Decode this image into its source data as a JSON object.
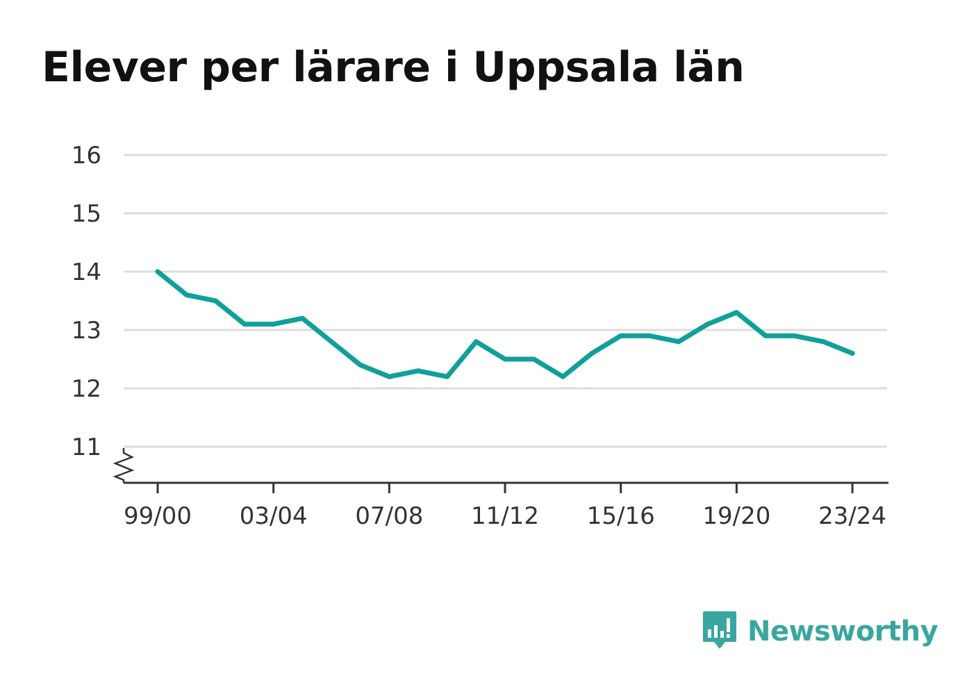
{
  "title": "Elever per lärare i Uppsala län",
  "brand": {
    "name": "Newsworthy",
    "icon": "newsworthy-logo-icon",
    "color": "#3aa6a0"
  },
  "colors": {
    "line": "#10a09a",
    "grid": "#dddddd",
    "axis": "#333333",
    "tick_text": "#333333"
  },
  "chart_data": {
    "type": "line",
    "title": "Elever per lärare i Uppsala län",
    "xlabel": "",
    "ylabel": "",
    "ylim": [
      10.4,
      16
    ],
    "yticks": [
      16,
      15,
      14,
      13,
      12,
      11
    ],
    "axis_break": true,
    "grid": true,
    "x": [
      "99/00",
      "00/01",
      "01/02",
      "02/03",
      "03/04",
      "04/05",
      "05/06",
      "06/07",
      "07/08",
      "08/09",
      "09/10",
      "10/11",
      "11/12",
      "12/13",
      "13/14",
      "14/15",
      "15/16",
      "16/17",
      "17/18",
      "18/19",
      "19/20",
      "20/21",
      "21/22",
      "22/23",
      "23/24"
    ],
    "xtick_labels": [
      "99/00",
      "03/04",
      "07/08",
      "11/12",
      "15/16",
      "19/20",
      "23/24"
    ],
    "series": [
      {
        "values": [
          14.0,
          13.6,
          13.5,
          13.1,
          13.1,
          13.2,
          12.8,
          12.4,
          12.2,
          12.3,
          12.2,
          12.8,
          12.5,
          12.5,
          12.2,
          12.6,
          12.9,
          12.9,
          12.8,
          13.1,
          13.3,
          12.9,
          12.9,
          12.8,
          12.6
        ]
      }
    ]
  }
}
